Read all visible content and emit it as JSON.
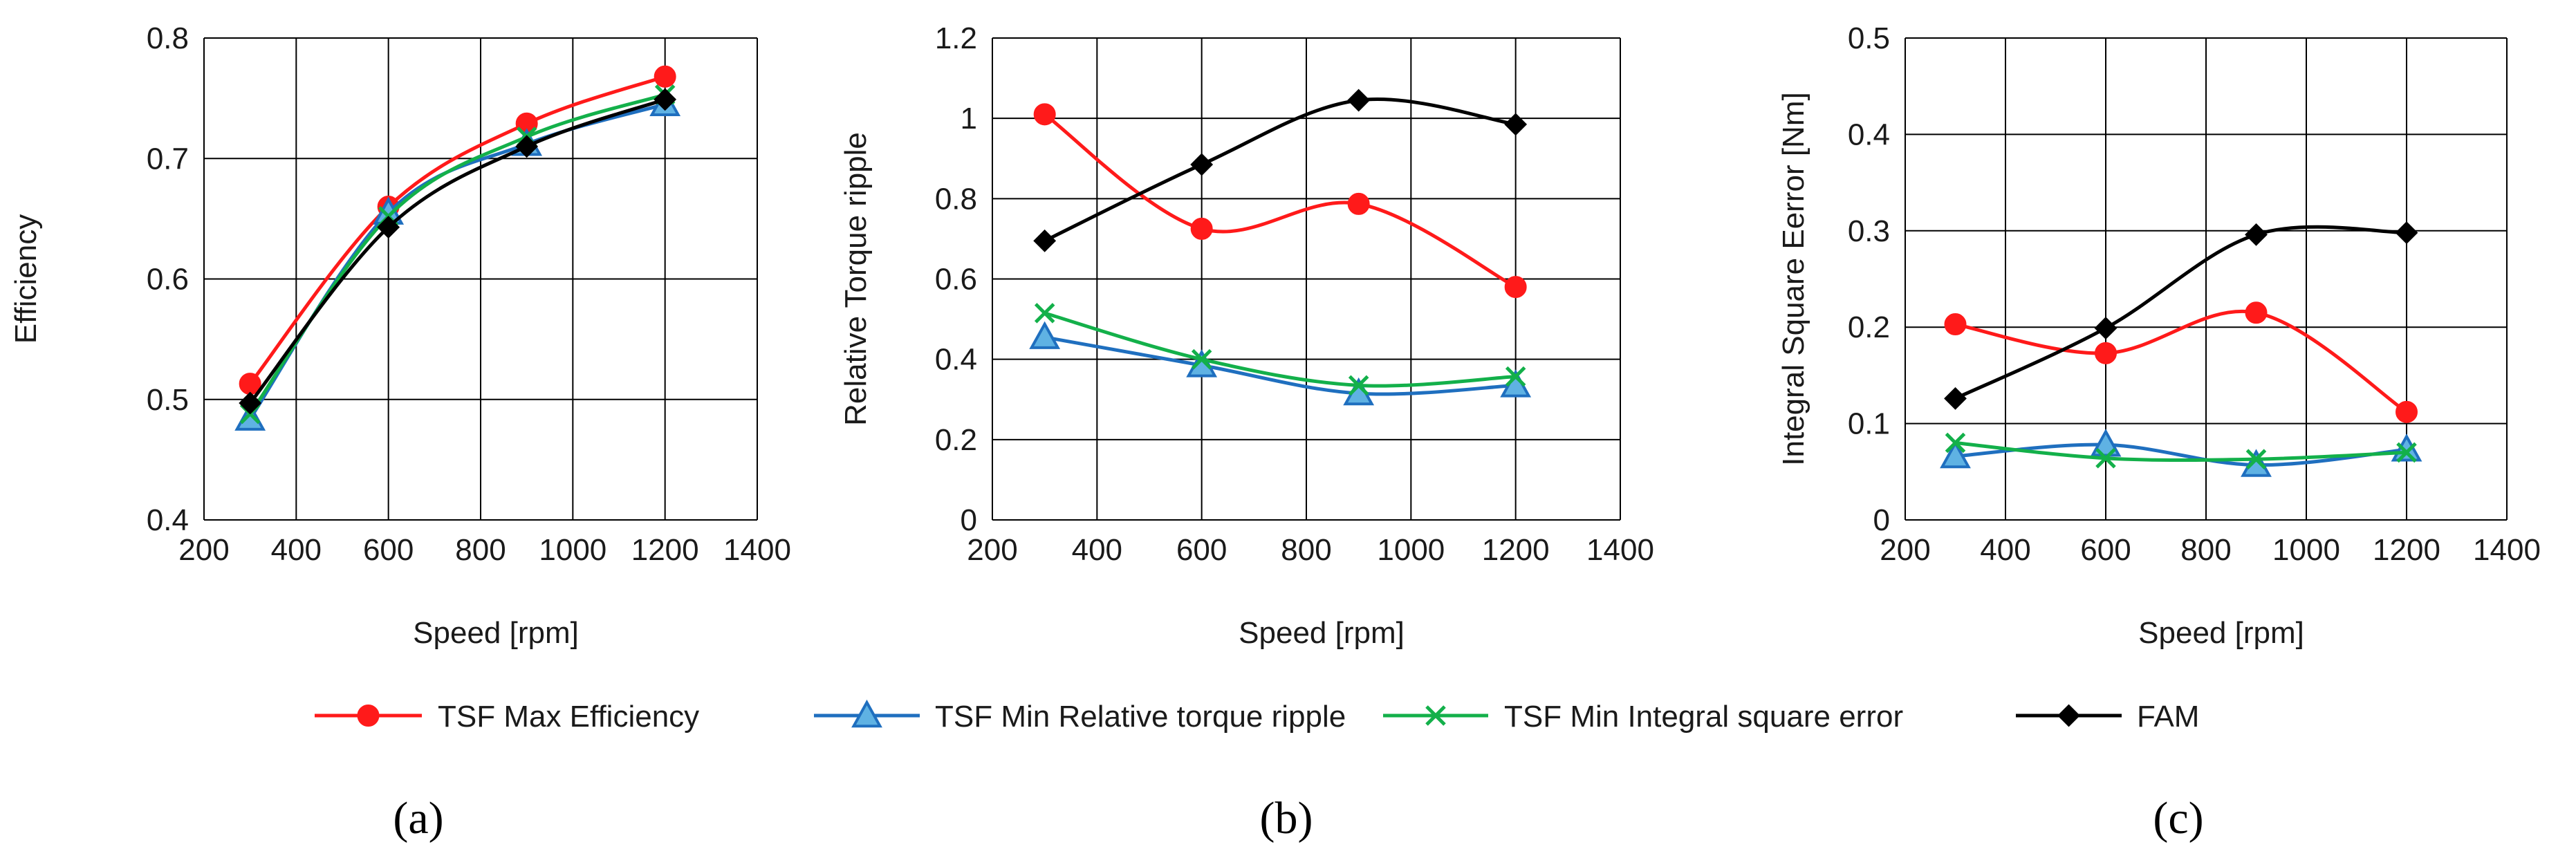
{
  "chart_data": [
    {
      "type": "line",
      "panel_label": "a",
      "title": "",
      "xlabel": "Speed [rpm]",
      "ylabel": "Efficiency",
      "xlim": [
        200,
        1400
      ],
      "ylim": [
        0.4,
        0.8
      ],
      "xticks": [
        200,
        400,
        600,
        800,
        1000,
        1200,
        1400
      ],
      "yticks": [
        0.4,
        0.5,
        0.6,
        0.7,
        0.8
      ],
      "yticklabels": [
        "0.4",
        "0.5",
        "0.6",
        "0.7",
        "0.8"
      ],
      "grid": true,
      "x": [
        300,
        600,
        900,
        1200
      ],
      "series": [
        {
          "name": "TSF Max Efficiency",
          "values": [
            0.513,
            0.66,
            0.729,
            0.768
          ]
        },
        {
          "name": "TSF Min Relative torque ripple",
          "values": [
            0.484,
            0.655,
            0.712,
            0.745
          ]
        },
        {
          "name": "TSF Min Integral square error",
          "values": [
            0.488,
            0.652,
            0.718,
            0.753
          ]
        },
        {
          "name": "FAM",
          "values": [
            0.497,
            0.643,
            0.71,
            0.749
          ]
        }
      ]
    },
    {
      "type": "line",
      "panel_label": "b",
      "title": "",
      "xlabel": "Speed [rpm]",
      "ylabel": "Relative Torque ripple",
      "xlim": [
        200,
        1400
      ],
      "ylim": [
        0,
        1.2
      ],
      "xticks": [
        200,
        400,
        600,
        800,
        1000,
        1200,
        1400
      ],
      "yticks": [
        0,
        0.2,
        0.4,
        0.6,
        0.8,
        1.0,
        1.2
      ],
      "yticklabels": [
        "0",
        "0.2",
        "0.4",
        "0.6",
        "0.8",
        "1",
        "1.2"
      ],
      "grid": true,
      "x": [
        300,
        600,
        900,
        1200
      ],
      "series": [
        {
          "name": "TSF Max Efficiency",
          "values": [
            1.01,
            0.725,
            0.787,
            0.58
          ]
        },
        {
          "name": "TSF Min Relative torque ripple",
          "values": [
            0.455,
            0.385,
            0.315,
            0.335
          ]
        },
        {
          "name": "TSF Min Integral square error",
          "values": [
            0.515,
            0.4,
            0.335,
            0.357
          ]
        },
        {
          "name": "FAM",
          "values": [
            0.695,
            0.885,
            1.045,
            0.985
          ]
        }
      ]
    },
    {
      "type": "line",
      "panel_label": "c",
      "title": "",
      "xlabel": "Speed [rpm]",
      "ylabel": "Integral Square Eerror [Nm]",
      "xlim": [
        200,
        1400
      ],
      "ylim": [
        0,
        0.5
      ],
      "xticks": [
        200,
        400,
        600,
        800,
        1000,
        1200,
        1400
      ],
      "yticks": [
        0,
        0.1,
        0.2,
        0.3,
        0.4,
        0.5
      ],
      "yticklabels": [
        "0",
        "0.1",
        "0.2",
        "0.3",
        "0.4",
        "0.5"
      ],
      "grid": true,
      "x": [
        300,
        600,
        900,
        1200
      ],
      "series": [
        {
          "name": "TSF Max Efficiency",
          "values": [
            0.203,
            0.173,
            0.215,
            0.112
          ]
        },
        {
          "name": "TSF Min Relative torque ripple",
          "values": [
            0.066,
            0.078,
            0.057,
            0.073
          ]
        },
        {
          "name": "TSF Min Integral square error",
          "values": [
            0.08,
            0.064,
            0.063,
            0.07
          ]
        },
        {
          "name": "FAM",
          "values": [
            0.126,
            0.199,
            0.296,
            0.298
          ]
        }
      ]
    }
  ],
  "legend": {
    "placement": "bottom-center",
    "items": [
      {
        "label": "TSF Max Efficiency",
        "color": "#ff1a1a",
        "marker": "circle"
      },
      {
        "label": "TSF Min Relative torque ripple",
        "color": "#1f6fbf",
        "fill": "#5fb2e3",
        "marker": "triangle"
      },
      {
        "label": "TSF Min Integral square error",
        "color": "#13b04a",
        "marker": "x"
      },
      {
        "label": "FAM",
        "color": "#000000",
        "marker": "diamond"
      }
    ]
  },
  "panel_labels": [
    "(a)",
    "(b)",
    "(c)"
  ]
}
